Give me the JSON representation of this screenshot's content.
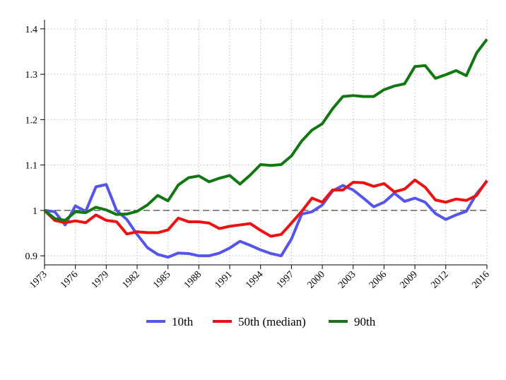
{
  "chart_data": {
    "type": "line",
    "title": "",
    "xlabel": "",
    "ylabel": "",
    "xlim": [
      1973,
      2016
    ],
    "ylim": [
      0.88,
      1.42
    ],
    "x_ticks": [
      "1973",
      "1976",
      "1979",
      "1982",
      "1985",
      "1988",
      "1991",
      "1994",
      "1997",
      "2000",
      "2003",
      "2006",
      "2009",
      "2012",
      "2016"
    ],
    "y_ticks": [
      "0.9",
      "1",
      "1.1",
      "1.2",
      "1.3",
      "1.4"
    ],
    "reference_line": {
      "y": 1,
      "style": "dashed"
    },
    "grid": "dotted",
    "legend_position": "bottom",
    "x": [
      1973,
      1974,
      1975,
      1976,
      1977,
      1978,
      1979,
      1980,
      1981,
      1982,
      1983,
      1984,
      1985,
      1986,
      1987,
      1988,
      1989,
      1990,
      1991,
      1992,
      1993,
      1994,
      1995,
      1996,
      1997,
      1998,
      1999,
      2000,
      2001,
      2002,
      2003,
      2004,
      2005,
      2006,
      2007,
      2008,
      2009,
      2010,
      2011,
      2012,
      2013,
      2014,
      2015,
      2016
    ],
    "series": [
      {
        "name": "10th",
        "color": "#5555ee",
        "values": [
          1.0,
          0.997,
          0.968,
          1.01,
          0.998,
          1.052,
          1.057,
          1.0,
          0.98,
          0.947,
          0.918,
          0.903,
          0.897,
          0.906,
          0.905,
          0.9,
          0.9,
          0.906,
          0.917,
          0.932,
          0.923,
          0.913,
          0.905,
          0.9,
          0.937,
          0.992,
          0.997,
          1.012,
          1.043,
          1.055,
          1.045,
          1.027,
          1.008,
          1.018,
          1.038,
          1.02,
          1.027,
          1.018,
          0.993,
          0.98,
          0.99,
          0.998,
          1.037,
          1.064
        ]
      },
      {
        "name": "50th (median)",
        "color": "#ee1111",
        "values": [
          1.0,
          0.978,
          0.973,
          0.977,
          0.973,
          0.99,
          0.978,
          0.975,
          0.948,
          0.953,
          0.951,
          0.951,
          0.957,
          0.983,
          0.975,
          0.975,
          0.972,
          0.96,
          0.965,
          0.968,
          0.971,
          0.956,
          0.943,
          0.947,
          0.972,
          0.998,
          1.027,
          1.018,
          1.045,
          1.045,
          1.062,
          1.061,
          1.053,
          1.059,
          1.041,
          1.047,
          1.067,
          1.051,
          1.023,
          1.018,
          1.025,
          1.022,
          1.033,
          1.066
        ]
      },
      {
        "name": "90th",
        "color": "#117711",
        "values": [
          1.0,
          0.982,
          0.978,
          0.997,
          0.995,
          1.007,
          1.001,
          0.991,
          0.992,
          0.998,
          1.012,
          1.033,
          1.021,
          1.056,
          1.072,
          1.076,
          1.063,
          1.071,
          1.077,
          1.058,
          1.078,
          1.101,
          1.099,
          1.101,
          1.12,
          1.153,
          1.177,
          1.191,
          1.224,
          1.251,
          1.253,
          1.251,
          1.251,
          1.266,
          1.274,
          1.279,
          1.317,
          1.319,
          1.291,
          1.299,
          1.308,
          1.297,
          1.347,
          1.377
        ]
      }
    ]
  }
}
